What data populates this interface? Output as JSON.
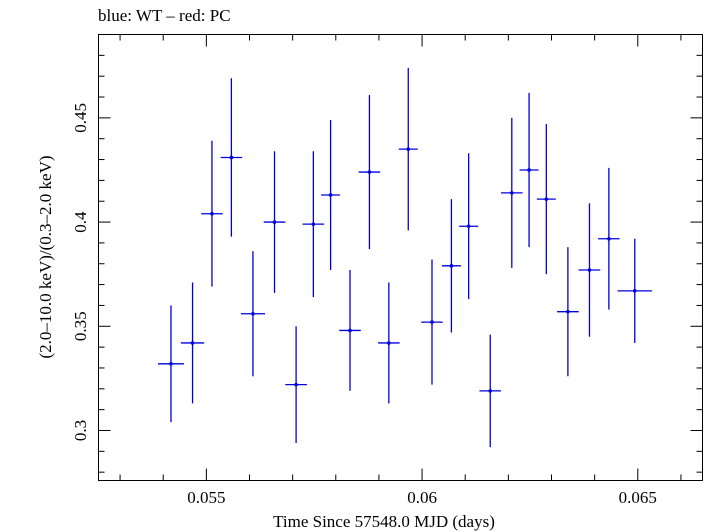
{
  "chart_data": {
    "type": "scatter",
    "title": "blue: WT – red: PC",
    "xlabel": "Time Since 57548.0 MJD (days)",
    "ylabel": "(2.0–10.0 keV)/(0.3–2.0 keV)",
    "xlim": [
      0.0525,
      0.0665
    ],
    "ylim": [
      0.276,
      0.49
    ],
    "x_ticks": [
      0.055,
      0.06,
      0.065
    ],
    "x_tick_labels": [
      "0.055",
      "0.06",
      "0.065"
    ],
    "y_ticks": [
      0.3,
      0.35,
      0.4,
      0.45
    ],
    "y_tick_labels": [
      "0.3",
      "0.35",
      "0.4",
      "0.45"
    ],
    "grid": false,
    "series": [
      {
        "name": "WT",
        "color": "#0000dd",
        "points": [
          {
            "x": 0.05418,
            "xerr": 0.0003,
            "y": 0.332,
            "yerr": 0.028
          },
          {
            "x": 0.05468,
            "xerr": 0.00027,
            "y": 0.342,
            "yerr": 0.029
          },
          {
            "x": 0.05513,
            "xerr": 0.00025,
            "y": 0.404,
            "yerr": 0.035
          },
          {
            "x": 0.05558,
            "xerr": 0.00025,
            "y": 0.431,
            "yerr": 0.038
          },
          {
            "x": 0.05608,
            "xerr": 0.00028,
            "y": 0.356,
            "yerr": 0.03
          },
          {
            "x": 0.05658,
            "xerr": 0.00025,
            "y": 0.4,
            "yerr": 0.034
          },
          {
            "x": 0.05708,
            "xerr": 0.00025,
            "y": 0.322,
            "yerr": 0.028
          },
          {
            "x": 0.05748,
            "xerr": 0.00025,
            "y": 0.399,
            "yerr": 0.035
          },
          {
            "x": 0.05788,
            "xerr": 0.00022,
            "y": 0.413,
            "yerr": 0.036
          },
          {
            "x": 0.05833,
            "xerr": 0.00025,
            "y": 0.348,
            "yerr": 0.029
          },
          {
            "x": 0.05878,
            "xerr": 0.00025,
            "y": 0.424,
            "yerr": 0.037
          },
          {
            "x": 0.05923,
            "xerr": 0.00025,
            "y": 0.342,
            "yerr": 0.029
          },
          {
            "x": 0.05968,
            "xerr": 0.00022,
            "y": 0.435,
            "yerr": 0.039
          },
          {
            "x": 0.06023,
            "xerr": 0.00025,
            "y": 0.352,
            "yerr": 0.03
          },
          {
            "x": 0.06068,
            "xerr": 0.00022,
            "y": 0.379,
            "yerr": 0.032
          },
          {
            "x": 0.06108,
            "xerr": 0.00022,
            "y": 0.398,
            "yerr": 0.035
          },
          {
            "x": 0.06158,
            "xerr": 0.00025,
            "y": 0.319,
            "yerr": 0.027
          },
          {
            "x": 0.06208,
            "xerr": 0.00025,
            "y": 0.414,
            "yerr": 0.036
          },
          {
            "x": 0.06248,
            "xerr": 0.00022,
            "y": 0.425,
            "yerr": 0.037
          },
          {
            "x": 0.06288,
            "xerr": 0.00022,
            "y": 0.411,
            "yerr": 0.036
          },
          {
            "x": 0.06338,
            "xerr": 0.00025,
            "y": 0.357,
            "yerr": 0.031
          },
          {
            "x": 0.06388,
            "xerr": 0.00025,
            "y": 0.377,
            "yerr": 0.032
          },
          {
            "x": 0.06433,
            "xerr": 0.00025,
            "y": 0.392,
            "yerr": 0.034
          },
          {
            "x": 0.06493,
            "xerr": 0.0004,
            "y": 0.367,
            "yerr": 0.025
          }
        ]
      }
    ]
  }
}
